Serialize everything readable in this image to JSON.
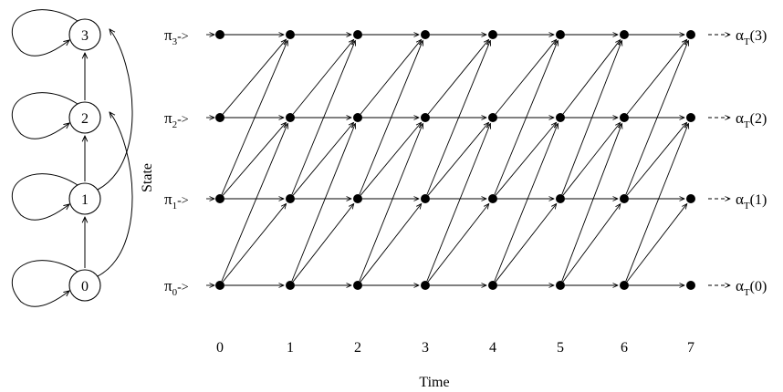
{
  "states": [
    "0",
    "1",
    "2",
    "3"
  ],
  "times": [
    "0",
    "1",
    "2",
    "3",
    "4",
    "5",
    "6",
    "7"
  ],
  "pi_symbol": "π",
  "alpha_symbol": "α",
  "alpha_subscript": "T",
  "arrow_token": "->",
  "dashed_arrow_token": "- ->",
  "axis_labels": {
    "x": "Time",
    "y": "State"
  },
  "colors": {
    "ink": "#000000",
    "background": "#ffffff"
  }
}
